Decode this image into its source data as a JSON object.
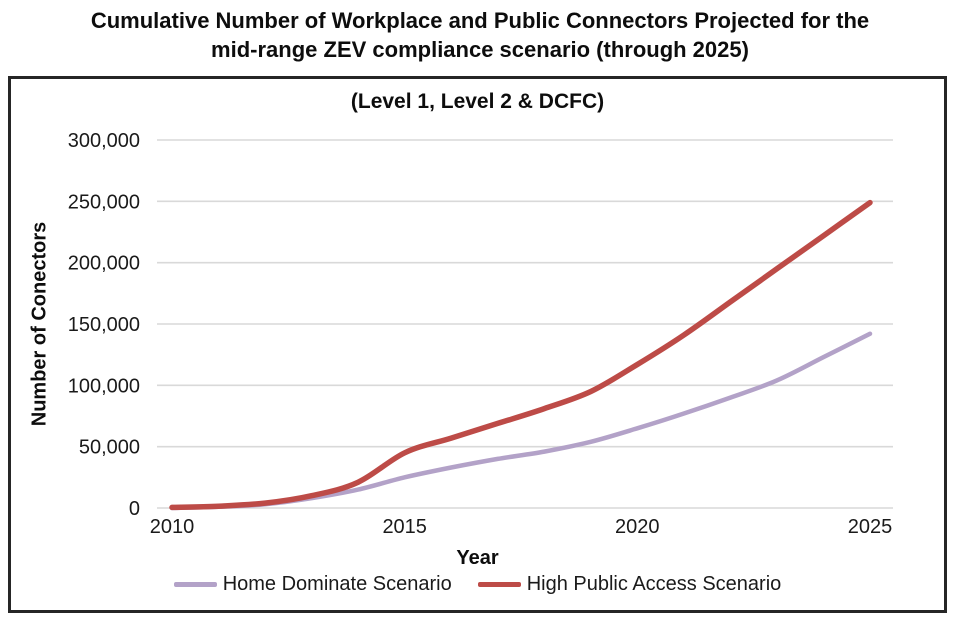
{
  "page": {
    "title_line1": "Cumulative Number of Workplace and Public Connectors Projected for the",
    "title_line2": "mid-range ZEV compliance scenario (through 2025)"
  },
  "chart_data": {
    "type": "line",
    "title": "(Level 1, Level 2 & DCFC)",
    "xlabel": "Year",
    "ylabel": "Number of Conectors",
    "x": [
      2010,
      2011,
      2012,
      2013,
      2014,
      2015,
      2016,
      2017,
      2018,
      2019,
      2020,
      2021,
      2022,
      2023,
      2024,
      2025
    ],
    "series": [
      {
        "name": "Home Dominate Scenario",
        "color": "#b3a2c8",
        "stroke_width": 4.5,
        "values": [
          0,
          1000,
          3000,
          8000,
          15000,
          25000,
          33000,
          40000,
          46000,
          54000,
          65000,
          77000,
          90000,
          104000,
          123000,
          142000
        ]
      },
      {
        "name": "High Public Access Scenario",
        "color": "#bd4b47",
        "stroke_width": 5.5,
        "values": [
          500,
          1500,
          4000,
          10000,
          21000,
          45000,
          57000,
          69000,
          81000,
          95000,
          117000,
          141000,
          168000,
          195000,
          222000,
          249000
        ]
      }
    ],
    "ylim": [
      0,
      300000
    ],
    "yticks": [
      0,
      50000,
      100000,
      150000,
      200000,
      250000,
      300000
    ],
    "ytick_labels": [
      "0",
      "50,000",
      "100,000",
      "150,000",
      "200,000",
      "250,000",
      "300,000"
    ],
    "xticks": [
      2010,
      2015,
      2020,
      2025
    ],
    "xtick_labels": [
      "2010",
      "2015",
      "2020",
      "2025"
    ],
    "grid": "horizontal-only",
    "legend_position": "bottom",
    "smooth_lines": true
  },
  "colors": {
    "gridline": "#d9d9d9",
    "text": "#1a1a1a",
    "box_border": "#262626"
  }
}
